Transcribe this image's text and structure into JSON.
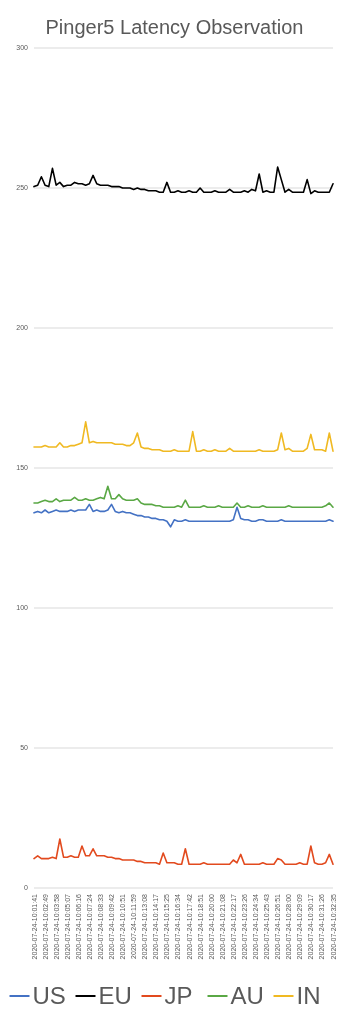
{
  "chart_data": {
    "type": "line",
    "title": "Pinger5 Latency Observation",
    "categories": [
      "2020-07-24-10:01:41",
      null,
      null,
      "2020-07-24-10:02:49",
      null,
      null,
      "2020-07-24-10:03:58",
      null,
      null,
      "2020-07-24-10:05:07",
      null,
      null,
      "2020-07-24-10:06:16",
      null,
      null,
      "2020-07-24-10:07:24",
      null,
      null,
      "2020-07-24-10:08:33",
      null,
      null,
      "2020-07-24-10:09:42",
      null,
      null,
      "2020-07-24-10:10:51",
      null,
      null,
      "2020-07-24-10:11:59",
      null,
      null,
      "2020-07-24-10:13:08",
      null,
      null,
      "2020-07-24-10:14:17",
      null,
      null,
      "2020-07-24-10:15:25",
      null,
      null,
      "2020-07-24-10:16:34",
      null,
      null,
      "2020-07-24-10:17:42",
      null,
      null,
      "2020-07-24-10:18:51",
      null,
      null,
      "2020-07-24-10:20:00",
      null,
      null,
      "2020-07-24-10:21:08",
      null,
      null,
      "2020-07-24-10:22:17",
      null,
      null,
      "2020-07-24-10:23:26",
      null,
      null,
      "2020-07-24-10:24:34",
      null,
      null,
      "2020-07-24-10:25:43",
      null,
      null,
      "2020-07-24-10:26:51",
      null,
      null,
      "2020-07-24-10:28:00",
      null,
      null,
      "2020-07-24-10:29:09",
      null,
      null,
      "2020-07-24-10:30:17",
      null,
      null,
      "2020-07-24-10:31:26",
      null,
      null,
      "2020-07-24-10:32:35"
    ],
    "series": [
      {
        "name": "US",
        "color": "#4472c4",
        "values": [
          134,
          134.5,
          134,
          135,
          134,
          134.5,
          135,
          134.5,
          134.5,
          134.5,
          135,
          134.5,
          135,
          135,
          135,
          137,
          134.5,
          135,
          134.5,
          134.5,
          135,
          137,
          134.5,
          134,
          134.5,
          134,
          134,
          133.5,
          133,
          133,
          132.5,
          132.5,
          132,
          132,
          131.5,
          131.5,
          131,
          129,
          131.5,
          131,
          131,
          131.5,
          131,
          131,
          131,
          131,
          131,
          131,
          131,
          131,
          131,
          131,
          131,
          131,
          131.5,
          136,
          132,
          131.5,
          131.5,
          131,
          131,
          131.5,
          131.5,
          131,
          131,
          131,
          131,
          131.5,
          131,
          131,
          131,
          131,
          131,
          131,
          131,
          131,
          131,
          131,
          131,
          131,
          131.5,
          131
        ]
      },
      {
        "name": "EU",
        "color": "#000000",
        "values": [
          250.5,
          251,
          254,
          251,
          250.5,
          257,
          251,
          252,
          250.5,
          251,
          251,
          252,
          251.5,
          251.5,
          251,
          251.5,
          254.5,
          251.5,
          251,
          251,
          251,
          250.5,
          250.5,
          250.5,
          250,
          250,
          250,
          249.5,
          250,
          249.5,
          249.5,
          249,
          249,
          249,
          248.5,
          248.5,
          252,
          248.5,
          248.5,
          249,
          248.5,
          248.5,
          249,
          248.5,
          248.5,
          250,
          248.5,
          248.5,
          248.5,
          249,
          248.5,
          248.5,
          248.5,
          249.5,
          248.5,
          248.5,
          248.5,
          249,
          248.5,
          249.5,
          249,
          255,
          248.5,
          249,
          248.5,
          248.5,
          257.5,
          253,
          248.5,
          249.5,
          248.5,
          248.5,
          248.5,
          248.5,
          253,
          248,
          249,
          248.5,
          248.5,
          248.5,
          248.5,
          251.5
        ]
      },
      {
        "name": "JP",
        "color": "#e24a1e",
        "values": [
          10.5,
          11.5,
          10.5,
          10.5,
          10.5,
          11,
          10.5,
          17.5,
          11,
          11,
          11.5,
          11,
          11,
          15,
          11.5,
          11.5,
          14,
          11.5,
          11.5,
          11.5,
          11,
          11,
          10.5,
          10.5,
          10,
          10,
          10,
          10,
          9.5,
          9.5,
          9,
          9,
          9,
          9,
          8.5,
          12.5,
          9,
          9,
          9,
          8.5,
          8.5,
          14,
          8.5,
          8.5,
          8.5,
          8.5,
          9,
          8.5,
          8.5,
          8.5,
          8.5,
          8.5,
          8.5,
          8.5,
          10,
          9,
          12,
          8.5,
          8.5,
          8.5,
          8.5,
          8.5,
          9,
          8.5,
          8.5,
          8.5,
          10.5,
          10,
          8.5,
          8.5,
          8.5,
          8.5,
          9,
          8.5,
          8.5,
          15,
          9,
          8.5,
          8.5,
          9,
          12,
          8.5
        ]
      },
      {
        "name": "AU",
        "color": "#5aa845",
        "values": [
          137.5,
          137.5,
          138,
          138.5,
          138,
          138,
          139,
          138,
          138.5,
          138.5,
          138.5,
          139.5,
          138.5,
          138.5,
          139,
          138.5,
          138.5,
          139,
          139.5,
          139,
          143.5,
          139,
          139,
          140.5,
          139,
          138.5,
          138.5,
          138.5,
          139,
          137.5,
          137,
          137,
          137,
          136.5,
          136.5,
          136,
          136,
          136,
          136,
          136.5,
          136,
          138.5,
          136,
          136,
          136,
          136,
          136.5,
          136,
          136,
          136,
          136.5,
          136,
          136,
          136,
          136,
          137.5,
          136,
          136,
          136.5,
          136,
          136,
          136,
          136.5,
          136,
          136,
          136,
          136,
          136,
          136,
          136.5,
          136,
          136,
          136,
          136,
          136,
          136,
          136,
          136,
          136,
          136.5,
          137.5,
          136
        ]
      },
      {
        "name": "IN",
        "color": "#f0b922",
        "values": [
          157.5,
          157.5,
          157.5,
          158,
          157.5,
          157.5,
          157.5,
          159,
          157.5,
          157.5,
          158,
          158,
          158.5,
          159,
          166.5,
          159,
          159.5,
          159,
          159,
          159,
          159,
          159,
          158.5,
          158.5,
          158.5,
          158,
          158,
          159,
          162.5,
          157.5,
          157,
          157,
          156.5,
          156.5,
          156.5,
          156,
          156,
          156,
          156.5,
          156,
          156,
          156,
          156,
          163,
          156,
          156,
          156.5,
          156,
          156,
          156.5,
          156,
          156,
          156,
          157,
          156,
          156,
          156,
          156,
          156,
          156,
          156,
          156.5,
          156,
          156,
          156,
          156,
          156.5,
          162.5,
          156.5,
          157,
          156,
          156,
          156,
          156,
          157,
          162,
          156.5,
          156.5,
          156.5,
          156,
          162.5,
          156
        ]
      }
    ],
    "ylim": [
      0,
      300
    ],
    "yticks": [
      0,
      50,
      100,
      150,
      200,
      250,
      300
    ],
    "grid": "y",
    "legend": "bottom"
  }
}
